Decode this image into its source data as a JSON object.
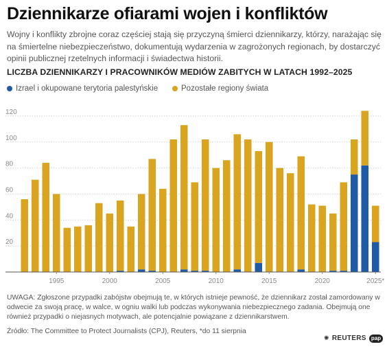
{
  "header": {
    "title": "Dziennikarze ofiarami wojen i konfliktów",
    "subtitle": "Wojny i konflikty zbrojne coraz częściej stają się przyczyną śmierci dziennikarzy, którzy, narażając się na śmiertelne niebezpieczeństwo, dokumentują wydarzenia w zagrożonych regionach, by dostarczyć opinii publicznej rzetelnych informacji i świadectwa historii."
  },
  "chart_data": {
    "type": "bar",
    "stacked": true,
    "title": "LICZBA DZIENNIKARZY I PRACOWNIKÓW MEDIÓW ZABITYCH W LATACH 1992–2025",
    "xlabel": "",
    "ylabel": "",
    "categories": [
      1992,
      1993,
      1994,
      1995,
      1996,
      1997,
      1998,
      1999,
      2000,
      2001,
      2002,
      2003,
      2004,
      2005,
      2006,
      2007,
      2008,
      2009,
      2010,
      2011,
      2012,
      2013,
      2014,
      2015,
      2016,
      2017,
      2018,
      2019,
      2020,
      2021,
      2022,
      2023,
      2024,
      2025
    ],
    "x_tick_labels": [
      {
        "year": 1995,
        "label": "1995"
      },
      {
        "year": 2000,
        "label": "2000"
      },
      {
        "year": 2005,
        "label": "2005"
      },
      {
        "year": 2010,
        "label": "2010"
      },
      {
        "year": 2015,
        "label": "2015"
      },
      {
        "year": 2020,
        "label": "2020"
      },
      {
        "year": 2025,
        "label": "2025*"
      }
    ],
    "series": [
      {
        "name": "Izrael i okupowane terytoria palestyńskie",
        "color": "#1f5aa6",
        "values": [
          0,
          0,
          0,
          0,
          0,
          0,
          0,
          0,
          0,
          1,
          0,
          2,
          1,
          0,
          0,
          2,
          1,
          1,
          0,
          0,
          2,
          0,
          7,
          0,
          0,
          0,
          2,
          0,
          0,
          1,
          1,
          75,
          82,
          23
        ]
      },
      {
        "name": "Pozostałe regiony świata",
        "color": "#d9a521",
        "values": [
          56,
          71,
          84,
          60,
          34,
          35,
          36,
          53,
          45,
          54,
          35,
          58,
          86,
          64,
          102,
          111,
          68,
          101,
          80,
          86,
          104,
          102,
          86,
          100,
          80,
          76,
          87,
          52,
          51,
          44,
          68,
          27,
          42,
          28
        ]
      }
    ],
    "yticks": [
      20,
      40,
      60,
      80,
      100,
      120
    ],
    "ylim": [
      0,
      130
    ],
    "grid": true,
    "legend_position": "top-left"
  },
  "footer": {
    "note": "UWAGA: Zgłoszone przypadki zabójstw obejmują te, w których istnieje pewność, że dziennikarz został zamordowany w odwecie za swoją pracę, w walce, w ogniu walki lub podczas wykonywania niebezpiecznego zadania. Obejmują one również przypadki o niejasnych motywach, ale potencjalnie powiązane z dziennikarstwem.",
    "source": "Źródło: The Committee to Protect Journalists (CPJ), Reuters, *do 11 sierpnia",
    "logo_reuters": "REUTERS",
    "logo_pap": "pap"
  }
}
